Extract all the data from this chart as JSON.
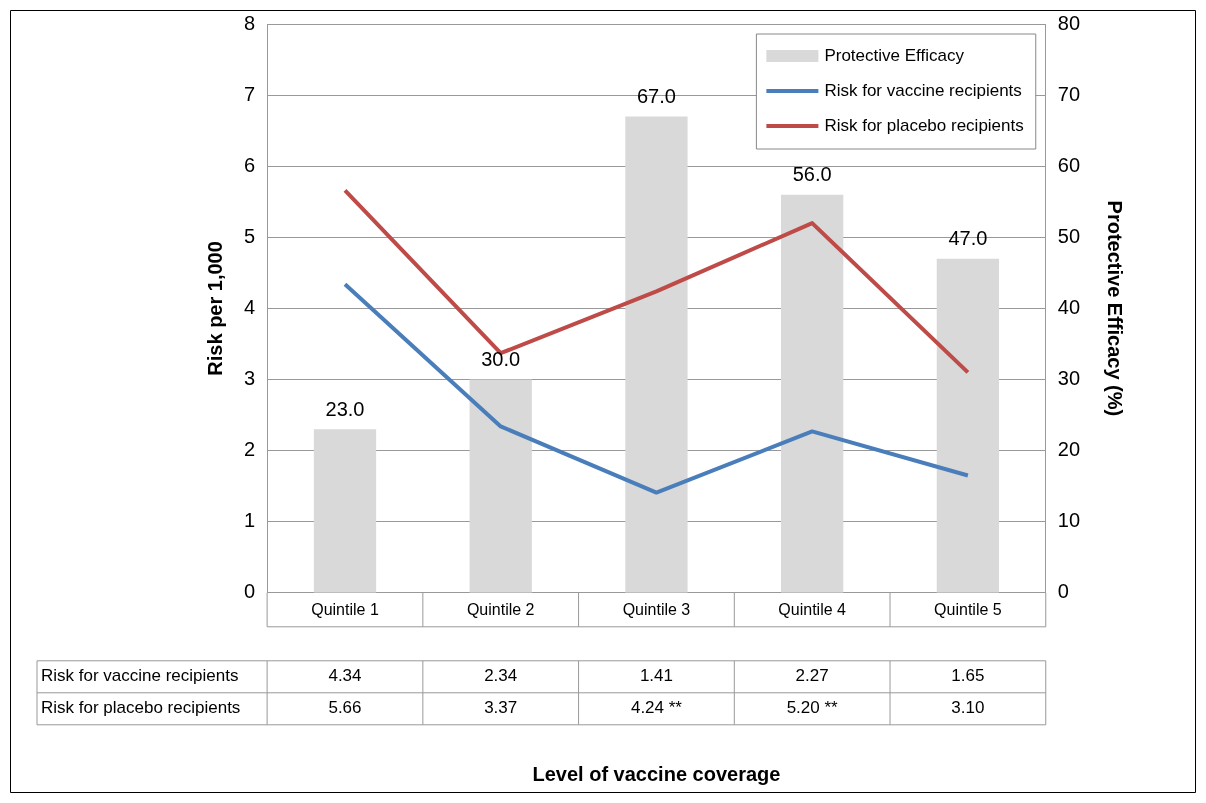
{
  "chart_data": {
    "type": "bar",
    "categories": [
      "Quintile 1",
      "Quintile 2",
      "Quintile 3",
      "Quintile 4",
      "Quintile 5"
    ],
    "series": [
      {
        "name": "Protective Efficacy",
        "axis": "y2",
        "color": "#d9d9d9",
        "values": [
          23.0,
          30.0,
          67.0,
          56.0,
          47.0
        ],
        "value_labels": [
          "23.0",
          "30.0",
          "67.0",
          "56.0",
          "47.0"
        ]
      },
      {
        "name": "Risk for vaccine recipients",
        "type": "line",
        "color": "#4a7ebb",
        "values": [
          4.34,
          2.34,
          1.41,
          2.27,
          1.65
        ],
        "value_labels": [
          "4.34",
          "2.34",
          "1.41",
          "2.27",
          "1.65"
        ]
      },
      {
        "name": "Risk for placebo recipients",
        "type": "line",
        "color": "#be4b48",
        "values": [
          5.66,
          3.37,
          4.24,
          5.2,
          3.1
        ],
        "value_labels": [
          "5.66",
          "3.37",
          "4.24 **",
          "5.20 **",
          "3.10"
        ]
      }
    ],
    "annotations": [
      "Level of vaccine coverage"
    ],
    "ylabel": "Risk per 1,000",
    "y2label": "Protective Efficacy (%)",
    "ylim": [
      0,
      8
    ],
    "yticks": [
      0,
      1,
      2,
      3,
      4,
      5,
      6,
      7,
      8
    ],
    "y2lim": [
      0,
      80
    ],
    "y2ticks": [
      0,
      10,
      20,
      30,
      40,
      50,
      60,
      70,
      80
    ],
    "grid": "y",
    "legend": "top right",
    "marker": "none",
    "line_style": "solid"
  }
}
